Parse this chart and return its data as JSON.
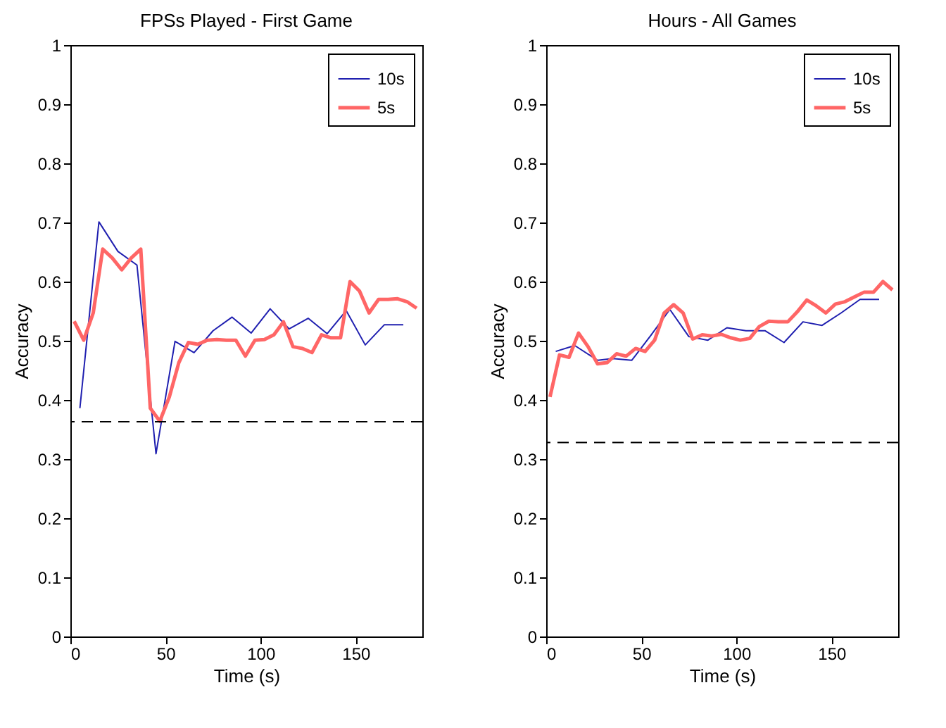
{
  "chart_data": [
    {
      "type": "line",
      "title": "FPSs Played - First Game",
      "xlabel": "Time (s)",
      "ylabel": "Accuracy",
      "xlim": [
        0,
        185
      ],
      "xticks": [
        0,
        50,
        100,
        150
      ],
      "ylim": [
        0,
        1
      ],
      "yticks": [
        0,
        0.1,
        0.2,
        0.3,
        0.4,
        0.5,
        0.6,
        0.7,
        0.8,
        0.9,
        1
      ],
      "grid": false,
      "legend": "top right",
      "series": [
        {
          "name": "10s",
          "color": "#2020b0",
          "x": [
            5,
            15,
            25,
            35,
            45,
            55,
            65,
            75,
            85,
            95,
            105,
            115,
            125,
            135,
            145,
            155,
            165,
            175
          ],
          "values": [
            0.386,
            0.701,
            0.651,
            0.628,
            0.309,
            0.499,
            0.48,
            0.517,
            0.54,
            0.513,
            0.554,
            0.52,
            0.538,
            0.512,
            0.551,
            0.493,
            0.527,
            0.527
          ]
        },
        {
          "name": "5s",
          "color": "#ff6666",
          "x": [
            2,
            7,
            12,
            17,
            22,
            27,
            32,
            37,
            42,
            47,
            52,
            57,
            62,
            67,
            72,
            77,
            82,
            87,
            92,
            97,
            102,
            107,
            112,
            117,
            122,
            127,
            132,
            137,
            142,
            147,
            152,
            157,
            162,
            167,
            172,
            177,
            182
          ],
          "values": [
            0.533,
            0.501,
            0.547,
            0.655,
            0.64,
            0.62,
            0.64,
            0.655,
            0.386,
            0.364,
            0.405,
            0.463,
            0.497,
            0.494,
            0.501,
            0.502,
            0.501,
            0.501,
            0.474,
            0.501,
            0.502,
            0.51,
            0.532,
            0.49,
            0.487,
            0.48,
            0.51,
            0.505,
            0.505,
            0.6,
            0.584,
            0.547,
            0.57,
            0.57,
            0.571,
            0.566,
            0.555
          ]
        }
      ],
      "ref_lines": [
        {
          "axis": "y",
          "value": 0.363,
          "color": "#000000",
          "line_style": "dashed"
        }
      ]
    },
    {
      "type": "line",
      "title": "Hours - All Games",
      "xlabel": "Time (s)",
      "ylabel": "Accuracy",
      "xlim": [
        0,
        185
      ],
      "xticks": [
        0,
        50,
        100,
        150
      ],
      "ylim": [
        0,
        1
      ],
      "yticks": [
        0,
        0.1,
        0.2,
        0.3,
        0.4,
        0.5,
        0.6,
        0.7,
        0.8,
        0.9,
        1
      ],
      "grid": false,
      "legend": "top right",
      "series": [
        {
          "name": "10s",
          "color": "#2020b0",
          "x": [
            5,
            15,
            27,
            35,
            45,
            55,
            65,
            75,
            85,
            95,
            105,
            115,
            125,
            135,
            145,
            155,
            165,
            175
          ],
          "values": [
            0.482,
            0.492,
            0.467,
            0.47,
            0.467,
            0.509,
            0.553,
            0.507,
            0.501,
            0.522,
            0.517,
            0.517,
            0.497,
            0.532,
            0.526,
            0.547,
            0.57,
            0.57
          ]
        },
        {
          "name": "5s",
          "color": "#ff6666",
          "x": [
            2,
            7,
            12,
            17,
            22,
            27,
            32,
            37,
            42,
            47,
            52,
            57,
            62,
            67,
            72,
            77,
            82,
            87,
            92,
            97,
            102,
            107,
            112,
            117,
            122,
            127,
            132,
            137,
            142,
            147,
            152,
            157,
            162,
            167,
            172,
            177,
            182
          ],
          "values": [
            0.405,
            0.476,
            0.472,
            0.513,
            0.49,
            0.461,
            0.463,
            0.478,
            0.474,
            0.487,
            0.482,
            0.501,
            0.547,
            0.561,
            0.547,
            0.503,
            0.51,
            0.508,
            0.511,
            0.505,
            0.501,
            0.504,
            0.524,
            0.533,
            0.532,
            0.532,
            0.549,
            0.569,
            0.559,
            0.547,
            0.562,
            0.566,
            0.574,
            0.582,
            0.582,
            0.6,
            0.586
          ]
        }
      ],
      "ref_lines": [
        {
          "axis": "y",
          "value": 0.328,
          "color": "#000000",
          "line_style": "dashed"
        }
      ]
    }
  ]
}
